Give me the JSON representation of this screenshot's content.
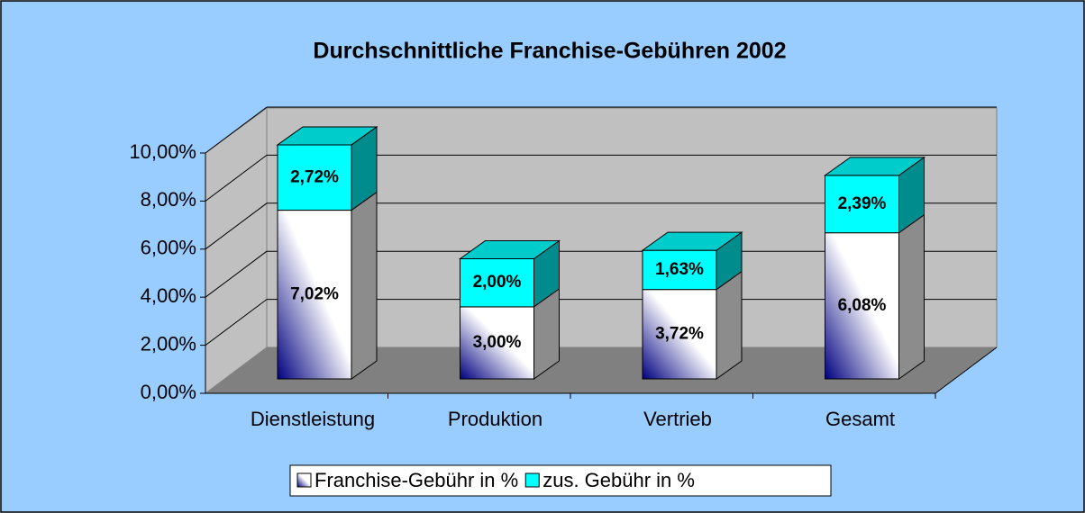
{
  "chart_data": {
    "type": "bar3d_stacked",
    "title": "Durchschnittliche Franchise-Gebühren 2002",
    "categories": [
      "Dienstleistung",
      "Produktion",
      "Vertrieb",
      "Gesamt"
    ],
    "series": [
      {
        "name": "Franchise-Gebühr in %",
        "color": "#000080",
        "values": [
          7.02,
          3.0,
          3.72,
          6.08
        ],
        "value_labels": [
          "7,02%",
          "3,00%",
          "3,72%",
          "6,08%"
        ]
      },
      {
        "name": "zus. Gebühr in %",
        "color": "#00ffff",
        "values": [
          2.72,
          2.0,
          1.63,
          2.39
        ],
        "value_labels": [
          "2,72%",
          "2,00%",
          "1,63%",
          "2,39%"
        ]
      }
    ],
    "ylim": [
      0,
      10
    ],
    "yticks": [
      {
        "value": 0,
        "label": "0,00%"
      },
      {
        "value": 2,
        "label": "2,00%"
      },
      {
        "value": 4,
        "label": "4,00%"
      },
      {
        "value": 6,
        "label": "6,00%"
      },
      {
        "value": 8,
        "label": "8,00%"
      },
      {
        "value": 10,
        "label": "10,00%"
      }
    ],
    "grid": true
  }
}
